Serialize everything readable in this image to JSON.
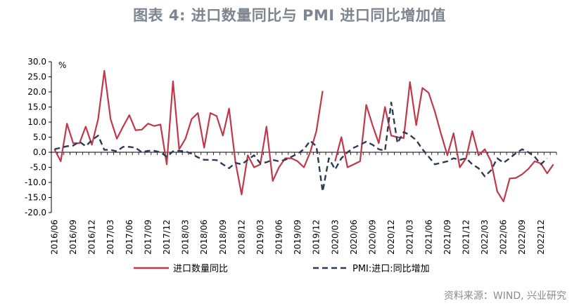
{
  "title": "图表 4:  进口数量同比与 PMI 进口同比增加值",
  "source": "资料来源：WIND, 兴业研究",
  "chart_data": {
    "type": "line",
    "ylabel": "%",
    "ylim": [
      -20,
      30
    ],
    "yticks": [
      "30.0",
      "25.0",
      "20.0",
      "15.0",
      "10.0",
      "5.0",
      "0.0",
      "-5.0",
      "-10.0",
      "-15.0",
      "-20.0"
    ],
    "xticks": [
      "2016/06",
      "2016/09",
      "2016/12",
      "2017/03",
      "2017/06",
      "2017/09",
      "2017/12",
      "2018/03",
      "2018/06",
      "2018/09",
      "2018/12",
      "2019/03",
      "2019/06",
      "2019/09",
      "2019/12",
      "2020/03",
      "2020/06",
      "2020/09",
      "2020/12",
      "2021/03",
      "2021/06",
      "2021/09",
      "2021/12",
      "2022/03",
      "2022/06",
      "2022/09",
      "2022/12"
    ],
    "series": [
      {
        "name": "进口数量同比",
        "color": "#c0394a",
        "style": "solid",
        "values": [
          1,
          -3,
          9.5,
          3,
          3,
          8.5,
          2.5,
          11,
          27,
          11,
          4.5,
          8.5,
          12.3,
          7.3,
          7.5,
          9.5,
          8.7,
          9.2,
          -4,
          23.5,
          1,
          4.5,
          11,
          13,
          1.5,
          13,
          12,
          5.5,
          14.5,
          -3,
          -14,
          -1,
          -5,
          -4,
          8.5,
          -9.5,
          -5,
          -2,
          -2,
          -3,
          -5,
          0,
          7,
          20.3,
          null,
          -3,
          5,
          -5,
          -4,
          -3,
          15.7,
          9,
          3,
          15,
          5.5,
          5,
          4.7,
          23.3,
          9,
          21.3,
          19.7,
          13.5,
          6,
          -1,
          6.3,
          -5,
          -2,
          7,
          -1,
          1,
          -3,
          -13,
          -16.3,
          -8.7,
          -8.5,
          -7.3,
          -5.5,
          -3,
          -3.7,
          -7,
          -4
        ]
      },
      {
        "name": "PMI:进口:同比增加",
        "color": "#2e3b55",
        "style": "dashed",
        "values": [
          1,
          1.5,
          2,
          2.2,
          3.5,
          2,
          4,
          5.5,
          0.8,
          0.8,
          0.3,
          1.8,
          1.8,
          1.5,
          0,
          0.5,
          0.5,
          0,
          -1.5,
          0.3,
          0.5,
          0.3,
          -0.5,
          -1.7,
          -2.5,
          -2.5,
          -2.6,
          -4,
          -5.3,
          -3.5,
          -4,
          -2.5,
          -1,
          -3.7,
          -3.3,
          -2.5,
          -3,
          -2.5,
          -1.5,
          -0.5,
          1,
          3.8,
          2,
          -13,
          -2,
          -5.7,
          -2,
          0,
          1.5,
          2.5,
          3.5,
          2.5,
          1,
          0.5,
          16.5,
          3,
          6.7,
          5.7,
          4,
          1,
          -1.5,
          -4,
          -3.5,
          -3,
          -2,
          -2.5,
          -2,
          -4,
          -5.3,
          -8,
          -6,
          -2,
          -3.5,
          -2,
          -0.3,
          1,
          0,
          -1.5,
          -4,
          -2
        ]
      }
    ]
  }
}
